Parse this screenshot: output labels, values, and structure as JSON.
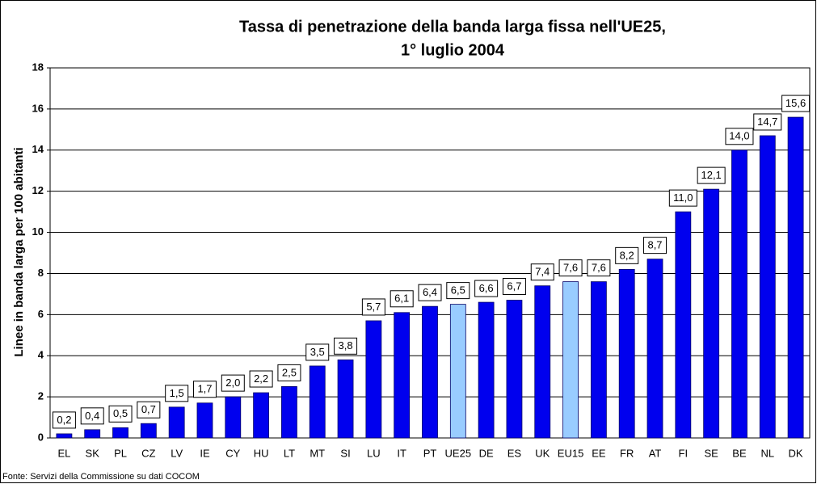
{
  "chart_data": {
    "type": "bar",
    "title": [
      "Tassa di penetrazione della banda larga fissa nell'UE25,",
      "1° luglio 2004"
    ],
    "y_label": "Linee in banda larga per 100 abitanti",
    "source": "Fonte: Servizi della Commissione su dati COCOM",
    "categories": [
      "EL",
      "SK",
      "PL",
      "CZ",
      "LV",
      "IE",
      "CY",
      "HU",
      "LT",
      "MT",
      "SI",
      "LU",
      "IT",
      "PT",
      "UE25",
      "DE",
      "ES",
      "UK",
      "EU15",
      "EE",
      "FR",
      "AT",
      "FI",
      "SE",
      "BE",
      "NL",
      "DK"
    ],
    "values": [
      0.2,
      0.4,
      0.5,
      0.7,
      1.5,
      1.7,
      2.0,
      2.2,
      2.5,
      3.5,
      3.8,
      5.7,
      6.1,
      6.4,
      6.5,
      6.6,
      6.7,
      7.4,
      7.6,
      7.6,
      8.2,
      8.7,
      11.0,
      12.1,
      14.0,
      14.7,
      15.6
    ],
    "value_labels": [
      "0,2",
      "0,4",
      "0,5",
      "0,7",
      "1,5",
      "1,7",
      "2,0",
      "2,2",
      "2,5",
      "3,5",
      "3,8",
      "5,7",
      "6,1",
      "6,4",
      "6,5",
      "6,6",
      "6,7",
      "7,4",
      "7,6",
      "7,6",
      "8,2",
      "8,7",
      "11,0",
      "12,1",
      "14,0",
      "14,7",
      "15,6"
    ],
    "colors": [
      "#0000ee",
      "#0000ee",
      "#0000ee",
      "#0000ee",
      "#0000ee",
      "#0000ee",
      "#0000ee",
      "#0000ee",
      "#0000ee",
      "#0000ee",
      "#0000ee",
      "#0000ee",
      "#0000ee",
      "#0000ee",
      "#99ccff",
      "#0000ee",
      "#0000ee",
      "#0000ee",
      "#99ccff",
      "#0000ee",
      "#0000ee",
      "#0000ee",
      "#0000ee",
      "#0000ee",
      "#0000ee",
      "#0000ee",
      "#0000ee"
    ],
    "ylim": [
      0,
      18
    ],
    "yticks": [
      0,
      2,
      4,
      6,
      8,
      10,
      12,
      14,
      16,
      18
    ],
    "grid": true
  }
}
